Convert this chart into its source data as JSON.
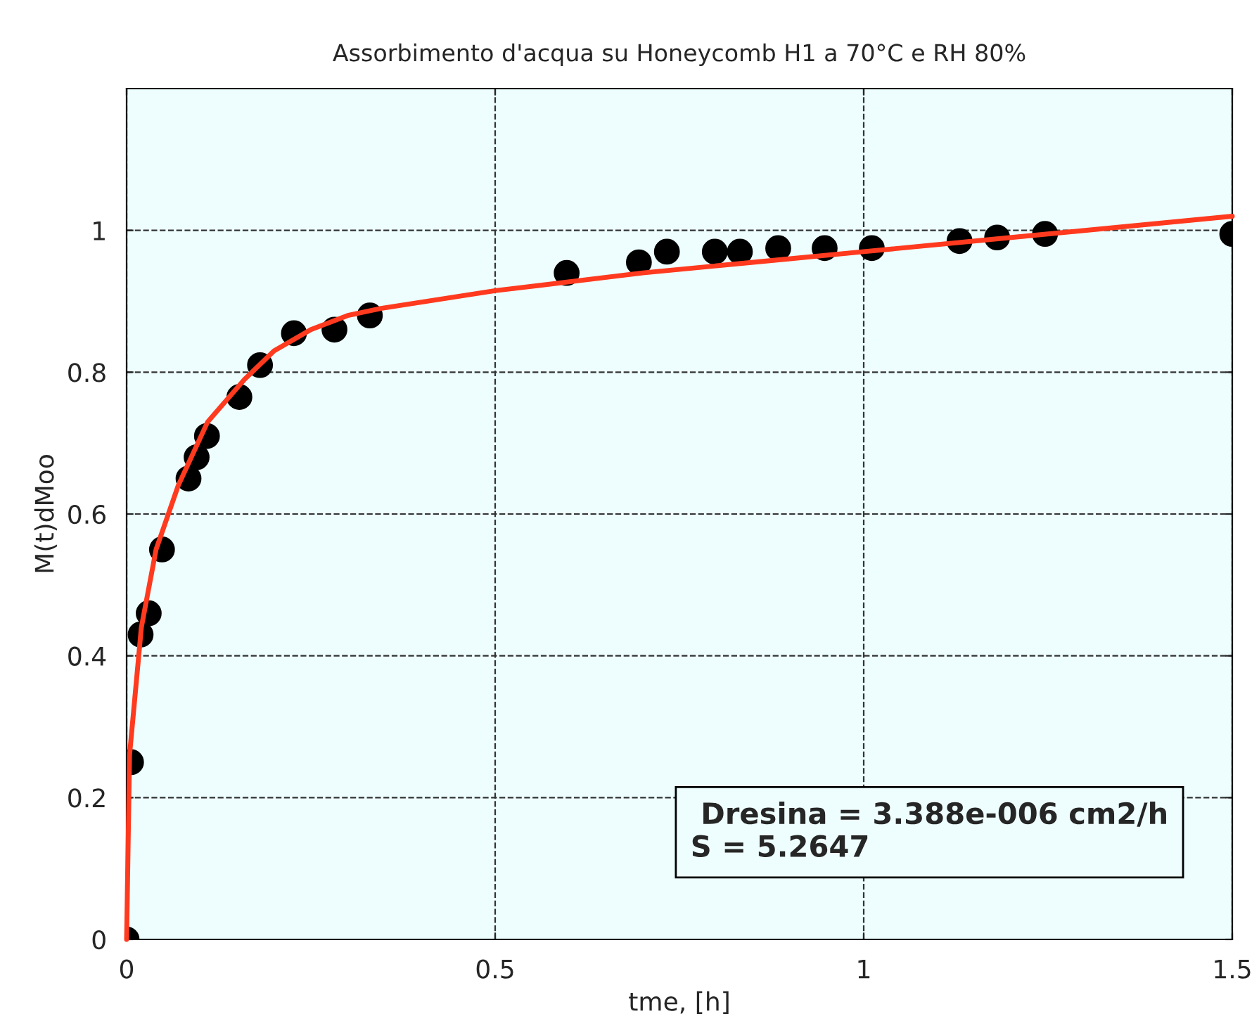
{
  "chart_data": {
    "type": "scatter",
    "title": "Assorbimento d'acqua su Honeycomb H1 a 70°C e RH 80%",
    "xlabel": "tme, [h]",
    "ylabel": "M(t)dMoo",
    "series": [
      {
        "color": "#000000",
        "marker": "circle",
        "x": [
          0,
          0.006,
          0.019,
          0.03,
          0.048,
          0.084,
          0.095,
          0.109,
          0.153,
          0.181,
          0.227,
          0.282,
          0.33,
          0.597,
          0.695,
          0.733,
          0.798,
          0.832,
          0.884,
          0.947,
          1.011,
          1.13,
          1.181,
          1.246,
          1.5
        ],
        "values": [
          0,
          0.25,
          0.43,
          0.46,
          0.55,
          0.65,
          0.68,
          0.71,
          0.765,
          0.81,
          0.855,
          0.86,
          0.88,
          0.94,
          0.955,
          0.97,
          0.97,
          0.97,
          0.975,
          0.975,
          0.975,
          0.985,
          0.99,
          0.995,
          0.995
        ]
      },
      {
        "type": "line",
        "color": "#ff3a1f",
        "marker": "none",
        "line_style": "solid",
        "x": [
          0,
          0.004,
          0.02,
          0.04,
          0.07,
          0.11,
          0.16,
          0.2,
          0.25,
          0.3,
          0.345,
          0.5,
          0.7,
          0.9,
          1.0,
          1.2,
          1.5
        ],
        "values": [
          0,
          0.26,
          0.44,
          0.55,
          0.64,
          0.73,
          0.79,
          0.83,
          0.86,
          0.88,
          0.89,
          0.915,
          0.94,
          0.96,
          0.97,
          0.99,
          1.02
        ]
      }
    ],
    "annotations": [
      " Dresina = 3.388e-006 cm2/h\nS = 5.2647"
    ],
    "xlim": [
      0,
      1.5
    ],
    "ylim": [
      0,
      1.2
    ],
    "xticks": [
      0,
      0.5,
      1,
      1.5
    ],
    "yticks": [
      0,
      0.2,
      0.4,
      0.6,
      0.8,
      1
    ],
    "grid": true,
    "legend": false
  }
}
